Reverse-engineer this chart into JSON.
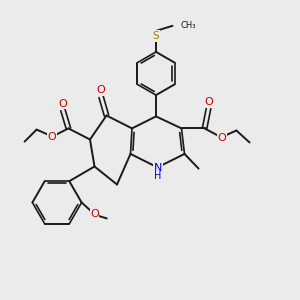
{
  "background_color": "#ebebeb",
  "bond_color": "#1a1a1a",
  "S_color": "#a08000",
  "O_color": "#cc0000",
  "N_color": "#0000cc",
  "text_color": "#1a1a1a",
  "figsize": [
    3.0,
    3.0
  ],
  "dpi": 100,
  "xlim": [
    0,
    10
  ],
  "ylim": [
    0,
    10
  ]
}
